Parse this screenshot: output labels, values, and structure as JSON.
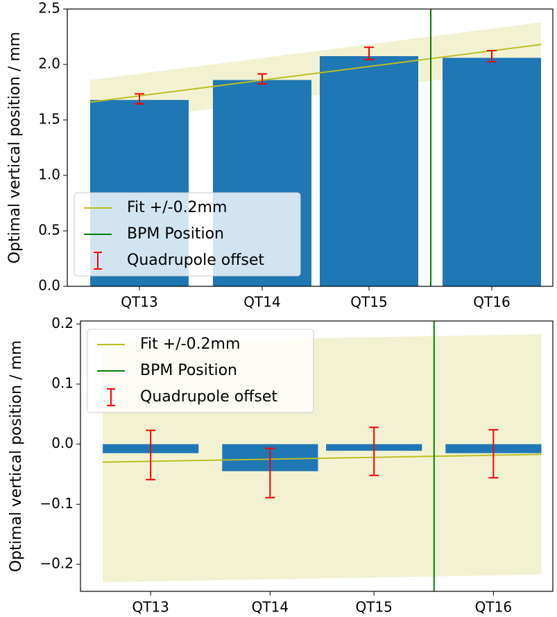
{
  "chart_data": [
    {
      "type": "bar",
      "ylabel": "Optimal vertical position / mm",
      "x": [
        104,
        281,
        435,
        612
      ],
      "values": [
        1.68,
        1.86,
        2.075,
        2.06
      ],
      "color": "#1f77b4",
      "offsets": [
        1.69,
        1.87,
        2.1,
        2.075
      ],
      "errors": [
        0.045,
        0.045,
        0.055,
        0.05
      ],
      "error_color": "#ff0000",
      "error_name": "Quadrupole offset",
      "fit": {
        "name": "Fit +/-0.2mm",
        "x": [
          33,
          683
        ],
        "values": [
          1.66,
          2.18
        ],
        "band": 0.2,
        "color": "#bcbd22"
      },
      "bpm": {
        "name": "BPM Position",
        "x": 524,
        "color": "#008000"
      },
      "xlim": [
        0,
        700
      ],
      "xticks": [
        {
          "value": 104,
          "label": "QT13"
        },
        {
          "value": 281,
          "label": "QT14"
        },
        {
          "value": 435,
          "label": "QT15"
        },
        {
          "value": 612,
          "label": "QT16"
        }
      ],
      "ylim": [
        0,
        2.5
      ],
      "yticks": [
        {
          "value": 0,
          "label": "0.0"
        },
        0.5,
        {
          "value": 1,
          "label": "1.0"
        },
        1.5,
        {
          "value": 2,
          "label": "2.0"
        },
        2.5
      ],
      "legend": "lower left"
    },
    {
      "type": "bar",
      "ylabel": "Optimal vertical position / mm",
      "x": [
        104,
        281,
        435,
        612
      ],
      "values": [
        -0.015,
        -0.045,
        -0.011,
        -0.015
      ],
      "color": "#1f77b4",
      "offsets": [
        -0.018,
        -0.048,
        -0.012,
        -0.016
      ],
      "errors": [
        0.041,
        0.041,
        0.04,
        0.04
      ],
      "error_color": "#ff0000",
      "error_name": "Quadrupole offset",
      "fit": {
        "name": "Fit +/-0.2mm",
        "x": [
          33,
          683
        ],
        "values": [
          -0.03,
          -0.017
        ],
        "band": 0.2,
        "color": "#bcbd22"
      },
      "bpm": {
        "name": "BPM Position",
        "x": 524,
        "color": "#008000"
      },
      "xlim": [
        0,
        700
      ],
      "xticks": [
        {
          "value": 104,
          "label": "QT13"
        },
        {
          "value": 281,
          "label": "QT14"
        },
        {
          "value": 435,
          "label": "QT15"
        },
        {
          "value": 612,
          "label": "QT16"
        }
      ],
      "ylim": [
        -0.245,
        0.205
      ],
      "yticks": [
        {
          "value": -0.2,
          "label": "−0.2"
        },
        {
          "value": -0.1,
          "label": "−0.1"
        },
        {
          "value": 0,
          "label": "0.0"
        },
        0.1,
        0.2
      ],
      "legend": "upper left"
    }
  ]
}
